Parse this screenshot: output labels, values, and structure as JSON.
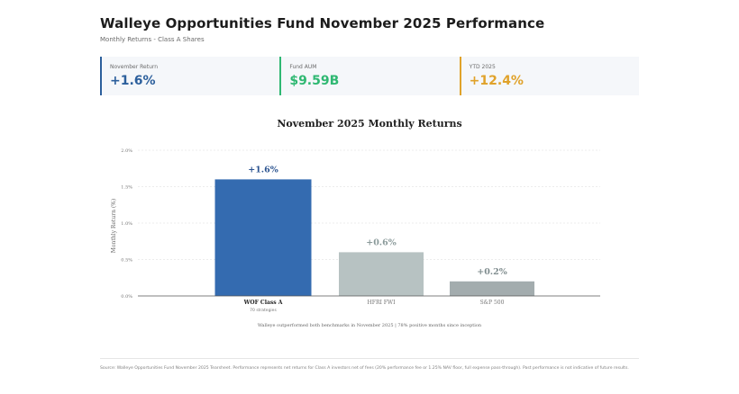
{
  "page": {
    "title": "Walleye Opportunities Fund November 2025 Performance",
    "subtitle": "Monthly Returns - Class A Shares"
  },
  "kpis": [
    {
      "label": "November Return",
      "value": "+1.6%",
      "color": "#2c5f9c"
    },
    {
      "label": "Fund AUM",
      "value": "$9.59B",
      "color": "#2fb872"
    },
    {
      "label": "YTD 2025",
      "value": "+12.4%",
      "color": "#e0a22a"
    }
  ],
  "chart_data": {
    "type": "bar",
    "title": "November 2025 Monthly Returns",
    "ylabel": "Monthly Return (%)",
    "xlabel": "",
    "ylim": [
      0,
      2.0
    ],
    "yticks": [
      0,
      0.5,
      1.0,
      1.5,
      2.0
    ],
    "ytick_labels": [
      "0.0%",
      "0.5%",
      "1.0%",
      "1.5%",
      "2.0%"
    ],
    "grid": true,
    "categories": [
      "WOF Class A",
      "HFRI FWI",
      "S&P 500"
    ],
    "category_subtitles": [
      "70 strategies",
      "",
      ""
    ],
    "values": [
      1.6,
      0.6,
      0.2
    ],
    "data_labels": [
      "+1.6%",
      "+0.6%",
      "+0.2%"
    ],
    "colors": [
      "#346bb0",
      "#b7c2c2",
      "#a3acae"
    ],
    "label_colors": [
      "#2c5490",
      "#8a9a9a",
      "#7f8c8e"
    ],
    "caption": "Walleye outperformed both benchmarks in November 2025 | 78% positive months since inception"
  },
  "footer": {
    "text": "Source: Walleye Opportunities Fund November 2025 Tearsheet. Performance represents net returns for Class A investors net of fees (20% performance fee or 1.25% NAV floor, full expense pass-through). Past performance is not indicative of future results."
  }
}
